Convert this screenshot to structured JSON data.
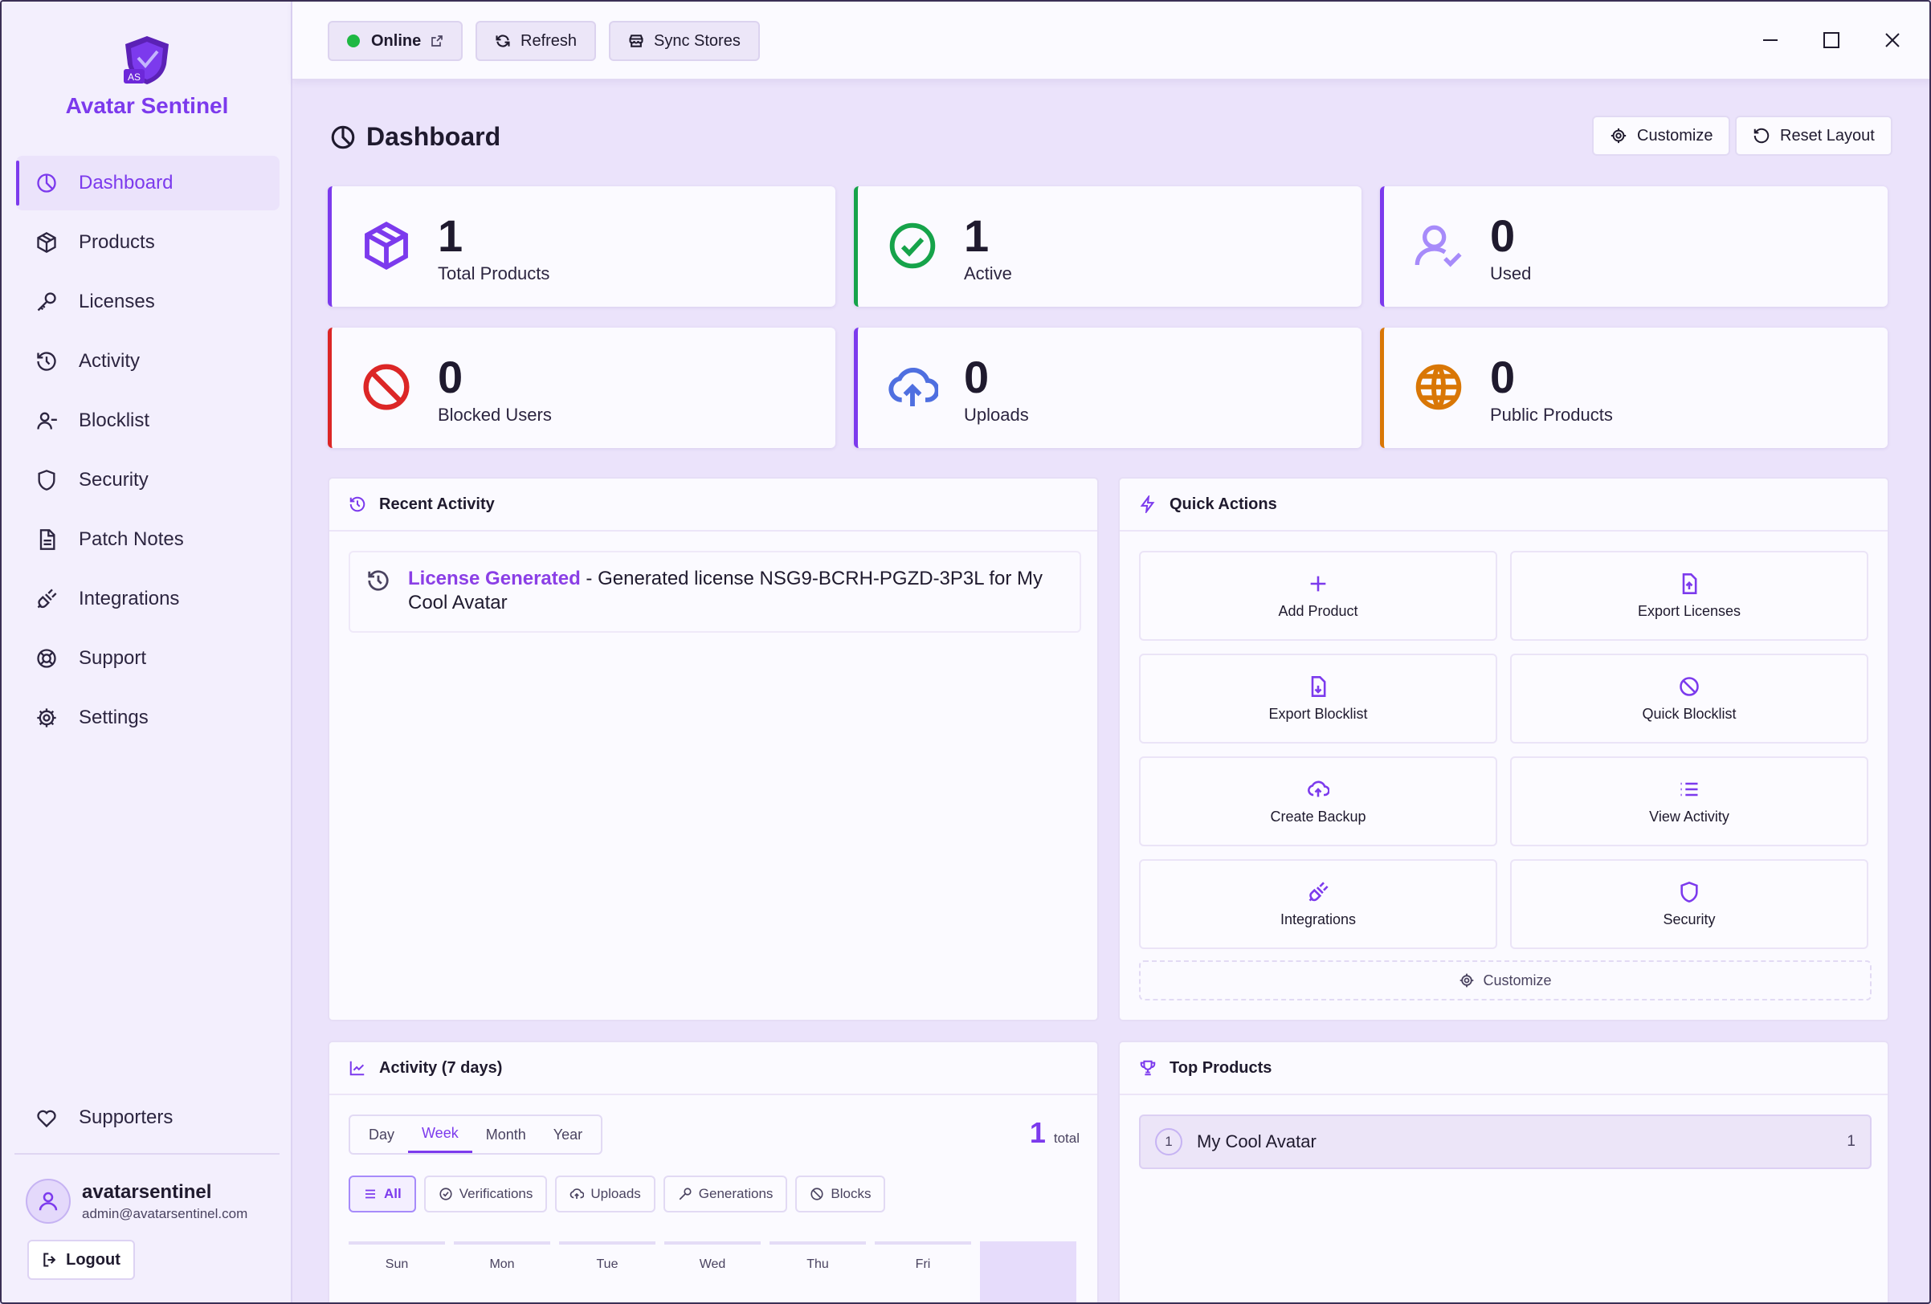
{
  "app": {
    "name": "Avatar Sentinel",
    "logo_text": "AS"
  },
  "sidebar": {
    "items": [
      {
        "label": "Dashboard",
        "icon": "dashboard-icon",
        "active": true
      },
      {
        "label": "Products",
        "icon": "package-icon"
      },
      {
        "label": "Licenses",
        "icon": "key-icon"
      },
      {
        "label": "Activity",
        "icon": "history-icon"
      },
      {
        "label": "Blocklist",
        "icon": "user-minus-icon"
      },
      {
        "label": "Security",
        "icon": "shield-icon"
      },
      {
        "label": "Patch Notes",
        "icon": "document-icon"
      },
      {
        "label": "Integrations",
        "icon": "plug-icon"
      },
      {
        "label": "Support",
        "icon": "lifebuoy-icon"
      },
      {
        "label": "Settings",
        "icon": "gear-icon"
      }
    ],
    "supporters": "Supporters",
    "user": {
      "name": "avatarsentinel",
      "email": "admin@avatarsentinel.com"
    },
    "logout": "Logout"
  },
  "topbar": {
    "status": "Online",
    "refresh": "Refresh",
    "sync": "Sync Stores"
  },
  "page": {
    "title": "Dashboard",
    "customize": "Customize",
    "reset_layout": "Reset Layout"
  },
  "stats": [
    {
      "value": "1",
      "label": "Total Products",
      "color": "#7c3aed"
    },
    {
      "value": "1",
      "label": "Active",
      "color": "#16a34a"
    },
    {
      "value": "0",
      "label": "Used",
      "color": "#7c3aed"
    },
    {
      "value": "0",
      "label": "Blocked Users",
      "color": "#dc2626"
    },
    {
      "value": "0",
      "label": "Uploads",
      "color": "#7c3aed"
    },
    {
      "value": "0",
      "label": "Public Products",
      "color": "#d97706"
    }
  ],
  "recent_activity": {
    "title": "Recent Activity",
    "items": [
      {
        "type": "License Generated",
        "text": " - Generated license NSG9-BCRH-PGZD-3P3L for My Cool Avatar"
      }
    ]
  },
  "quick_actions": {
    "title": "Quick Actions",
    "items": [
      "Add Product",
      "Export Licenses",
      "Export Blocklist",
      "Quick Blocklist",
      "Create Backup",
      "View Activity",
      "Integrations",
      "Security"
    ],
    "customize": "Customize"
  },
  "activity_chart": {
    "title": "Activity (7 days)",
    "ranges": [
      "Day",
      "Week",
      "Month",
      "Year"
    ],
    "active_range": "Week",
    "total": "1",
    "total_label": "total",
    "filters": [
      "All",
      "Verifications",
      "Uploads",
      "Generations",
      "Blocks"
    ],
    "days": [
      "Sun",
      "Mon",
      "Tue",
      "Wed",
      "Thu",
      "Fri",
      ""
    ]
  },
  "top_products": {
    "title": "Top Products",
    "items": [
      {
        "rank": "1",
        "name": "My Cool Avatar",
        "count": "1"
      }
    ]
  },
  "colors": {
    "accent": "#7c3aed",
    "online": "#1fb843"
  }
}
